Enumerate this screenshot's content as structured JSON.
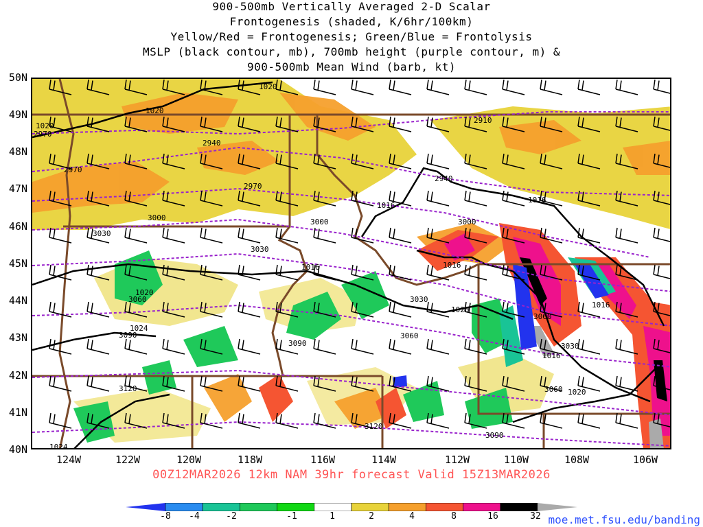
{
  "title_lines": [
    "900-500mb Vertically Averaged 2-D Scalar",
    "Frontogenesis (shaded, K/6hr/100km)",
    "Yellow/Red = Frontogenesis;  Green/Blue = Frontolysis",
    "MSLP (black contour, mb), 700mb height (purple contour, m) &",
    "900-500mb Mean Wind (barb, kt)"
  ],
  "lat_labels": [
    "50N",
    "49N",
    "48N",
    "47N",
    "46N",
    "45N",
    "44N",
    "43N",
    "42N",
    "41N",
    "40N"
  ],
  "lon_labels": [
    "124W",
    "122W",
    "120W",
    "118W",
    "116W",
    "114W",
    "112W",
    "110W",
    "108W",
    "106W"
  ],
  "forecast_label": "00Z12MAR2026 12km NAM 39hr forecast Valid 15Z13MAR2026",
  "colorbar": {
    "labels": [
      "-8",
      "-4",
      "-2",
      "-1",
      "1",
      "2",
      "4",
      "8",
      "16",
      "32"
    ],
    "colors": [
      "#2233ee",
      "#2a8cf0",
      "#19c496",
      "#1fc95a",
      "#11d814",
      "#ffffff",
      "#e8d33a",
      "#f5a02d",
      "#f55532",
      "#ee118c",
      "#000000",
      "#aaaaaa"
    ]
  },
  "map": {
    "extent": {
      "lon_min": -125,
      "lon_max": -105,
      "lat_min": 40,
      "lat_max": 50
    },
    "mslp_labels": [
      "1020",
      "1020",
      "1020",
      "1016",
      "1016",
      "1016",
      "1016",
      "1020",
      "1020",
      "1024",
      "1024",
      "1020",
      "1016",
      "1016",
      "1020"
    ],
    "height_labels": [
      "2910",
      "2940",
      "2940",
      "2970",
      "2970",
      "2970",
      "3000",
      "3000",
      "3030",
      "3030",
      "3030",
      "3060",
      "3060",
      "3060",
      "3090",
      "3090",
      "3090",
      "3120",
      "3120",
      "3000",
      "3030",
      "3060"
    ]
  },
  "credit": "moe.met.fsu.edu/banding"
}
